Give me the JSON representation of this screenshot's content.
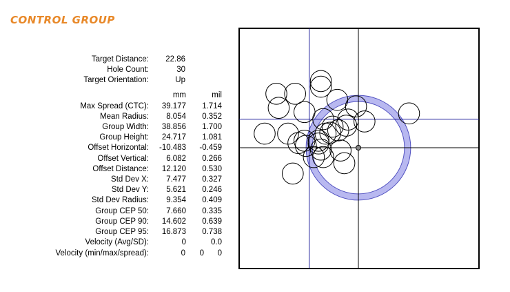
{
  "title": "CONTROL GROUP",
  "info": [
    {
      "label": "Target Distance:",
      "value": "22.86"
    },
    {
      "label": "Hole Count:",
      "value": "30"
    },
    {
      "label": "Target Orientation:",
      "value": "Up"
    }
  ],
  "units": {
    "col1": "mm",
    "col2": "mil"
  },
  "stats": [
    {
      "label": "Max Spread (CTC):",
      "mm": "39.177",
      "mil": "1.714"
    },
    {
      "label": "Mean Radius:",
      "mm": "8.054",
      "mil": "0.352"
    },
    {
      "label": "Group Width:",
      "mm": "38.856",
      "mil": "1.700"
    },
    {
      "label": "Group Height:",
      "mm": "24.717",
      "mil": "1.081"
    },
    {
      "label": "Offset Horizontal:",
      "mm": "-10.483",
      "mil": "-0.459"
    },
    {
      "label": "Offset Vertical:",
      "mm": "6.082",
      "mil": "0.266"
    },
    {
      "label": "Offset Distance:",
      "mm": "12.120",
      "mil": "0.530"
    },
    {
      "label": "Std Dev X:",
      "mm": "7.477",
      "mil": "0.327"
    },
    {
      "label": "Std Dev Y:",
      "mm": "5.621",
      "mil": "0.246"
    },
    {
      "label": "Std Dev Radius:",
      "mm": "9.354",
      "mil": "0.409"
    },
    {
      "label": "Group CEP 50:",
      "mm": "7.660",
      "mil": "0.335"
    },
    {
      "label": "Group CEP 90:",
      "mm": "14.602",
      "mil": "0.639"
    },
    {
      "label": "Group CEP 95:",
      "mm": "16.873",
      "mil": "0.738"
    },
    {
      "label": "Velocity (Avg/SD):",
      "mm": "0",
      "mil": "0.0"
    }
  ],
  "velocity_mms": {
    "label": "Velocity (min/max/spread):",
    "min": "0",
    "max": "0",
    "spread": "0"
  },
  "chart_data": {
    "type": "scatter",
    "units": "mm",
    "xlim": [
      -25,
      25
    ],
    "ylim": [
      -25,
      25
    ],
    "aim_point": [
      0,
      0
    ],
    "group_center": [
      -10.483,
      6.082
    ],
    "cep_ring": {
      "center": [
        0,
        0
      ],
      "radius": 10.5
    },
    "colors": {
      "frame": "#000000",
      "crosshair": "#000000",
      "group_cross": "#1a1a99",
      "hole": "#000000",
      "cep_ring": "#b8b8f0",
      "cep_ring_edge": "#5050c0"
    },
    "hole_diameter": 4.5,
    "holes": [
      {
        "x": -8.0,
        "y": 14.2
      },
      {
        "x": -8.0,
        "y": 13.0
      },
      {
        "x": -17.5,
        "y": 11.5
      },
      {
        "x": -13.5,
        "y": 11.5
      },
      {
        "x": -4.5,
        "y": 10.2
      },
      {
        "x": -17.0,
        "y": 8.5
      },
      {
        "x": -11.5,
        "y": 7.6
      },
      {
        "x": -0.5,
        "y": 8.8
      },
      {
        "x": 10.8,
        "y": 7.3
      },
      {
        "x": -7.5,
        "y": 6.1
      },
      {
        "x": -2.2,
        "y": 6.0
      },
      {
        "x": 1.3,
        "y": 5.6
      },
      {
        "x": -2.6,
        "y": 4.7
      },
      {
        "x": -5.5,
        "y": 4.5
      },
      {
        "x": -4.3,
        "y": 3.7
      },
      {
        "x": -7.0,
        "y": 3.0
      },
      {
        "x": -6.0,
        "y": 3.2
      },
      {
        "x": -20.0,
        "y": 3.0
      },
      {
        "x": -15.0,
        "y": 3.0
      },
      {
        "x": -11.5,
        "y": 1.5
      },
      {
        "x": -12.8,
        "y": 1.0
      },
      {
        "x": -8.5,
        "y": 0.9
      },
      {
        "x": -11.2,
        "y": 0.4
      },
      {
        "x": -8.0,
        "y": -0.4
      },
      {
        "x": -7.5,
        "y": -2.0
      },
      {
        "x": -9.5,
        "y": -2.0
      },
      {
        "x": -3.8,
        "y": -0.6
      },
      {
        "x": -3.0,
        "y": -3.3
      },
      {
        "x": -14.0,
        "y": -5.5
      },
      {
        "x": -8.5,
        "y": 1.5
      }
    ]
  }
}
